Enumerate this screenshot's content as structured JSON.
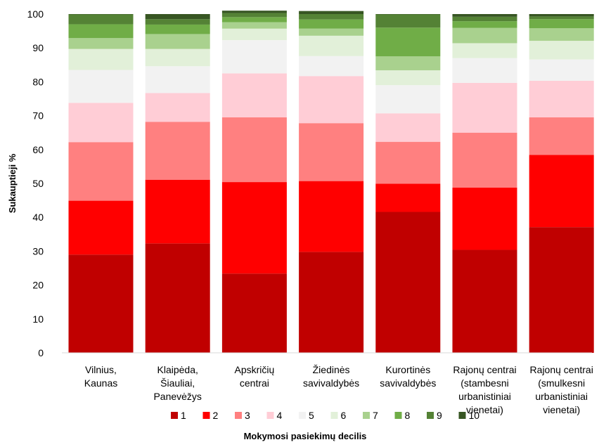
{
  "chart_data": {
    "type": "bar",
    "stacked": true,
    "title": "",
    "xlabel": "Mokymosi pasiekimų decilis",
    "ylabel": "Sukauptieji %",
    "ylim": [
      0,
      100
    ],
    "yticks": [
      "0",
      "10",
      "20",
      "30",
      "40",
      "50",
      "60",
      "70",
      "80",
      "90",
      "100"
    ],
    "grid": false,
    "legend_position": "bottom",
    "categories": [
      [
        "Vilnius,",
        "Kaunas"
      ],
      [
        "Klaipėda,",
        "Šiauliai,",
        "Panevėžys"
      ],
      [
        "Apskričių",
        "centrai"
      ],
      [
        "Žiedinės",
        "savivaldybės"
      ],
      [
        "Kurortinės",
        "savivaldybės"
      ],
      [
        "Rajonų centrai",
        "(stambesni",
        "urbanistiniai",
        "vienetai)"
      ],
      [
        "Rajonų centrai",
        "(smulkesni",
        "urbanistiniai",
        "vienetai)"
      ]
    ],
    "series": [
      {
        "name": "1",
        "color": "#c00000",
        "values": [
          29.0,
          32.3,
          23.4,
          29.8,
          41.6,
          30.4,
          37.1
        ]
      },
      {
        "name": "2",
        "color": "#ff0000",
        "values": [
          15.9,
          18.8,
          27.0,
          20.9,
          8.3,
          18.4,
          21.3
        ]
      },
      {
        "name": "3",
        "color": "#ff8080",
        "values": [
          17.3,
          17.1,
          19.1,
          17.1,
          12.4,
          16.2,
          11.1
        ]
      },
      {
        "name": "4",
        "color": "#ffcdd6",
        "values": [
          11.6,
          8.5,
          13.0,
          13.9,
          8.4,
          14.7,
          10.8
        ]
      },
      {
        "name": "5",
        "color": "#f2f2f2",
        "values": [
          9.7,
          7.9,
          9.8,
          5.9,
          8.3,
          7.3,
          6.3
        ]
      },
      {
        "name": "6",
        "color": "#e2f0d9",
        "values": [
          6.2,
          5.1,
          3.4,
          6.0,
          4.4,
          4.4,
          5.5
        ]
      },
      {
        "name": "7",
        "color": "#a9d18e",
        "values": [
          3.2,
          4.4,
          1.9,
          2.1,
          4.1,
          4.5,
          3.7
        ]
      },
      {
        "name": "8",
        "color": "#70ad47",
        "values": [
          4.1,
          2.8,
          1.5,
          2.7,
          8.5,
          2.0,
          2.7
        ]
      },
      {
        "name": "9",
        "color": "#548235",
        "values": [
          2.9,
          1.6,
          1.2,
          1.6,
          3.9,
          1.3,
          0.8
        ]
      },
      {
        "name": "10",
        "color": "#375623",
        "values": [
          0.1,
          1.5,
          0.7,
          0.9,
          0.1,
          0.8,
          0.7
        ]
      }
    ]
  }
}
